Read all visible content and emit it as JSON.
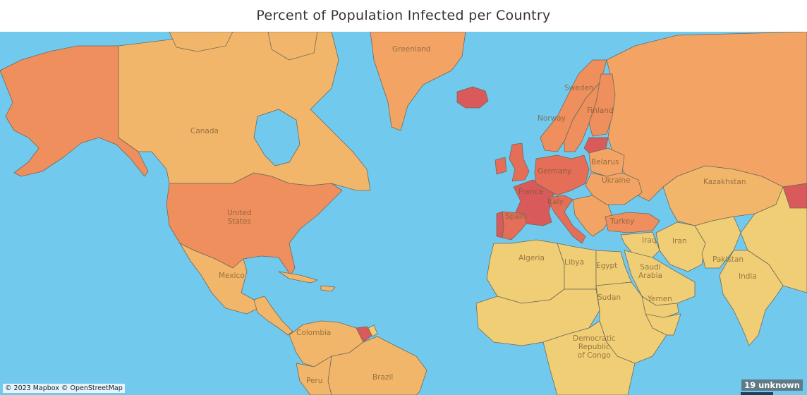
{
  "title": "Percent of Population Infected per Country",
  "colors": {
    "ocean": "#72c9ee",
    "lowest": "#eedc82",
    "low": "#f0ce75",
    "mid_low": "#f2b66a",
    "mid": "#f3a464",
    "mid_high": "#ee8f5d",
    "high": "#e46e57",
    "highest": "#d85a5a"
  },
  "countries": [
    {
      "name": "Alaska",
      "label": "",
      "color": "mid_high"
    },
    {
      "name": "Canada",
      "label": "Canada",
      "color": "mid_low"
    },
    {
      "name": "United States",
      "label": "United\nStates",
      "color": "mid_high"
    },
    {
      "name": "Mexico",
      "label": "Mexico",
      "color": "mid_low"
    },
    {
      "name": "Greenland",
      "label": "Greenland",
      "color": "mid"
    },
    {
      "name": "Iceland",
      "label": "",
      "color": "highest"
    },
    {
      "name": "Norway",
      "label": "Norway",
      "color": "mid_high"
    },
    {
      "name": "Sweden",
      "label": "Sweden",
      "color": "mid_high"
    },
    {
      "name": "Finland",
      "label": "Finland",
      "color": "mid_high"
    },
    {
      "name": "United Kingdom",
      "label": "",
      "color": "high"
    },
    {
      "name": "Ireland",
      "label": "",
      "color": "high"
    },
    {
      "name": "France",
      "label": "France",
      "color": "highest"
    },
    {
      "name": "Spain",
      "label": "Spain",
      "color": "high"
    },
    {
      "name": "Portugal",
      "label": "",
      "color": "highest"
    },
    {
      "name": "Germany",
      "label": "Germany",
      "color": "high"
    },
    {
      "name": "Italy",
      "label": "Italy",
      "color": "high"
    },
    {
      "name": "Belarus",
      "label": "Belarus",
      "color": "mid"
    },
    {
      "name": "Ukraine",
      "label": "Ukraine",
      "color": "mid"
    },
    {
      "name": "Russia",
      "label": "",
      "color": "mid"
    },
    {
      "name": "Turkey",
      "label": "Turkey",
      "color": "mid_high"
    },
    {
      "name": "Kazakhstan",
      "label": "Kazakhstan",
      "color": "mid_low"
    },
    {
      "name": "Iran",
      "label": "Iran",
      "color": "low"
    },
    {
      "name": "Iraq",
      "label": "Iraq",
      "color": "low"
    },
    {
      "name": "Saudi Arabia",
      "label": "Saudi\nArabia",
      "color": "low"
    },
    {
      "name": "Yemen",
      "label": "Yemen",
      "color": "low"
    },
    {
      "name": "Pakistan",
      "label": "Pakistan",
      "color": "low"
    },
    {
      "name": "India",
      "label": "India",
      "color": "low"
    },
    {
      "name": "Algeria",
      "label": "Algeria",
      "color": "low"
    },
    {
      "name": "Libya",
      "label": "Libya",
      "color": "low"
    },
    {
      "name": "Egypt",
      "label": "Egypt",
      "color": "low"
    },
    {
      "name": "Sudan",
      "label": "Sudan",
      "color": "low"
    },
    {
      "name": "Democratic Republic of Congo",
      "label": "Democratic\nRepublic\nof Congo",
      "color": "low"
    },
    {
      "name": "Colombia",
      "label": "Colombia",
      "color": "mid_low"
    },
    {
      "name": "Brazil",
      "label": "Brazil",
      "color": "mid_low"
    },
    {
      "name": "Peru",
      "label": "Peru",
      "color": "mid_low"
    }
  ],
  "attribution": "© 2023 Mapbox © OpenStreetMap",
  "unknown_badge": "19 unknown"
}
